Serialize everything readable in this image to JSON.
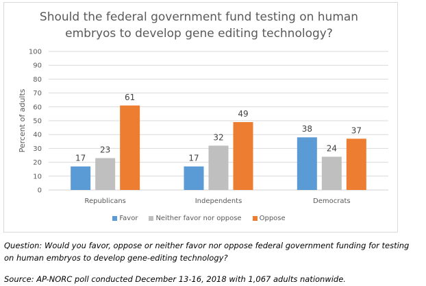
{
  "chart_data": {
    "type": "bar",
    "title": "Should the federal government fund testing on human embryos to develop gene editing technology?",
    "title_lines": [
      "Should the federal government fund testing on human",
      "embryos to develop gene editing technology?"
    ],
    "xlabel": "",
    "ylabel": "Percent of adults",
    "ylim": [
      0,
      100
    ],
    "yticks": [
      0,
      10,
      20,
      30,
      40,
      50,
      60,
      70,
      80,
      90,
      100
    ],
    "grid": true,
    "legend_position": "bottom",
    "categories": [
      "Republicans",
      "Independents",
      "Democrats"
    ],
    "series": [
      {
        "name": "Favor",
        "color": "#5b9bd5",
        "values": [
          17,
          17,
          38
        ]
      },
      {
        "name": "Neither favor nor oppose",
        "color": "#bfbfbf",
        "values": [
          23,
          32,
          24
        ]
      },
      {
        "name": "Oppose",
        "color": "#ed7d31",
        "values": [
          61,
          49,
          37
        ]
      }
    ]
  },
  "notes": {
    "question": "Question: Would you favor, oppose or neither favor nor oppose federal government funding for testing on human embryos to develop gene-editing technology?",
    "question_line1": "Question: Would you favor, oppose or neither favor nor oppose federal government funding for testing",
    "question_line2": "on human embryos to develop gene-editing technology?",
    "source": "Source: AP-NORC poll conducted December 13-16, 2018 with 1,067 adults nationwide."
  }
}
